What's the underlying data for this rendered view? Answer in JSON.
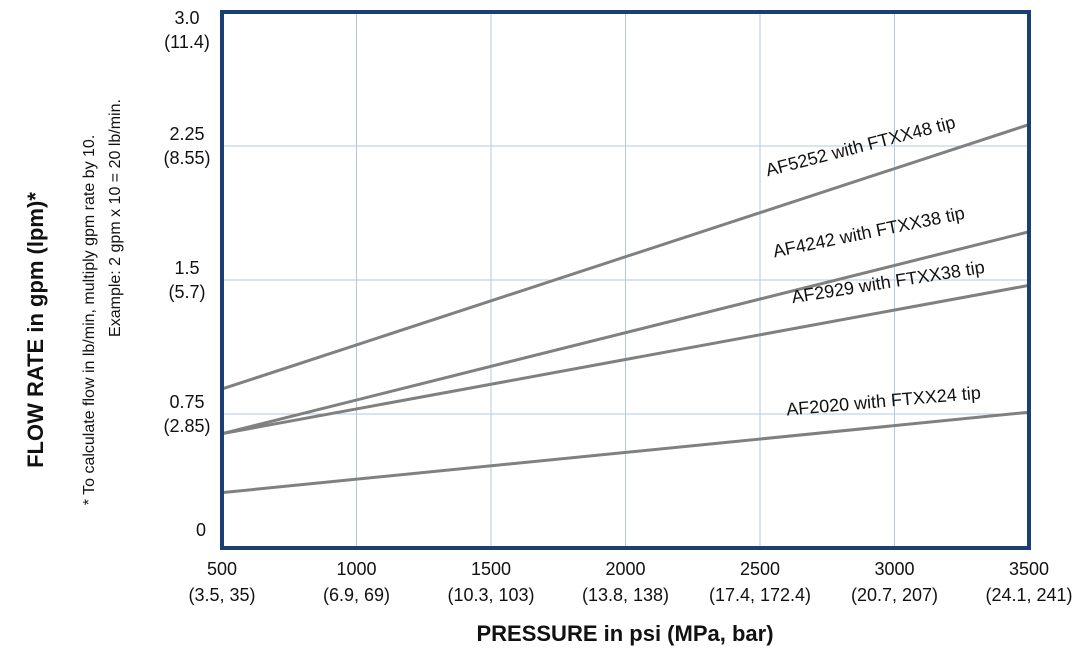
{
  "chart_data": {
    "type": "line",
    "xlabel": "PRESSURE in psi (MPa, bar)",
    "ylabel": "FLOW RATE in gpm (lpm)*",
    "footnote": {
      "line1": "* To calculate flow in lb/min, multiply gpm rate by 10.",
      "line2": "Example: 2 gpm x 10 = 20 lb/min."
    },
    "xlim": [
      500,
      3500
    ],
    "ylim": [
      0,
      3.0
    ],
    "grid": true,
    "x_ticks": [
      {
        "value": 500,
        "label": "500",
        "sublabel": "(3.5, 35)"
      },
      {
        "value": 1000,
        "label": "1000",
        "sublabel": "(6.9, 69)"
      },
      {
        "value": 1500,
        "label": "1500",
        "sublabel": "(10.3, 103)"
      },
      {
        "value": 2000,
        "label": "2000",
        "sublabel": "(13.8, 138)"
      },
      {
        "value": 2500,
        "label": "2500",
        "sublabel": "(17.4, 172.4)"
      },
      {
        "value": 3000,
        "label": "3000",
        "sublabel": "(20.7, 207)"
      },
      {
        "value": 3500,
        "label": "3500",
        "sublabel": "(24.1, 241)"
      }
    ],
    "y_ticks": [
      {
        "value": 0,
        "label": "0",
        "sublabel": ""
      },
      {
        "value": 0.75,
        "label": "0.75",
        "sublabel": "(2.85)"
      },
      {
        "value": 1.5,
        "label": "1.5",
        "sublabel": "(5.7)"
      },
      {
        "value": 2.25,
        "label": "2.25",
        "sublabel": "(8.55)"
      },
      {
        "value": 3.0,
        "label": "3.0",
        "sublabel": "(11.4)"
      }
    ],
    "series": [
      {
        "name": "AF5252 with FTXX48 tip",
        "x": [
          500,
          3500
        ],
        "y": [
          0.89,
          2.37
        ]
      },
      {
        "name": "AF4242 with FTXX38 tip",
        "x": [
          500,
          3500
        ],
        "y": [
          0.64,
          1.77
        ]
      },
      {
        "name": "AF2929 with FTXX38 tip",
        "x": [
          500,
          3500
        ],
        "y": [
          0.64,
          1.47
        ]
      },
      {
        "name": "AF2020 with FTXX24 tip",
        "x": [
          500,
          3500
        ],
        "y": [
          0.31,
          0.76
        ]
      }
    ],
    "colors": {
      "frame": "#1b3f73",
      "grid": "#b4c8dc",
      "line": "#808080"
    }
  }
}
